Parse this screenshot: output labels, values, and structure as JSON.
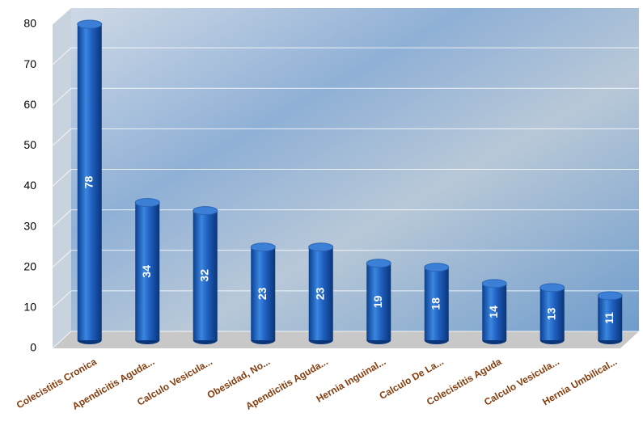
{
  "chart_data": {
    "type": "bar",
    "categories": [
      "Colecistitis Cronica",
      "Apendicitis Aguda...",
      "Calculo Vesicula...",
      "Obesidad, No...",
      "Apendicitis Aguda...",
      "Hernia Inguinal...",
      "Calculo De La...",
      "Colecistitis Aguda",
      "Calculo  Vesicula...",
      "Hernia Umbilical..."
    ],
    "values": [
      78,
      34,
      32,
      23,
      23,
      19,
      18,
      14,
      13,
      11
    ],
    "color": "#1f5fbf",
    "ylim": [
      0,
      80
    ],
    "yticks": [
      0,
      10,
      20,
      30,
      40,
      50,
      60,
      70,
      80
    ],
    "grid": true
  }
}
